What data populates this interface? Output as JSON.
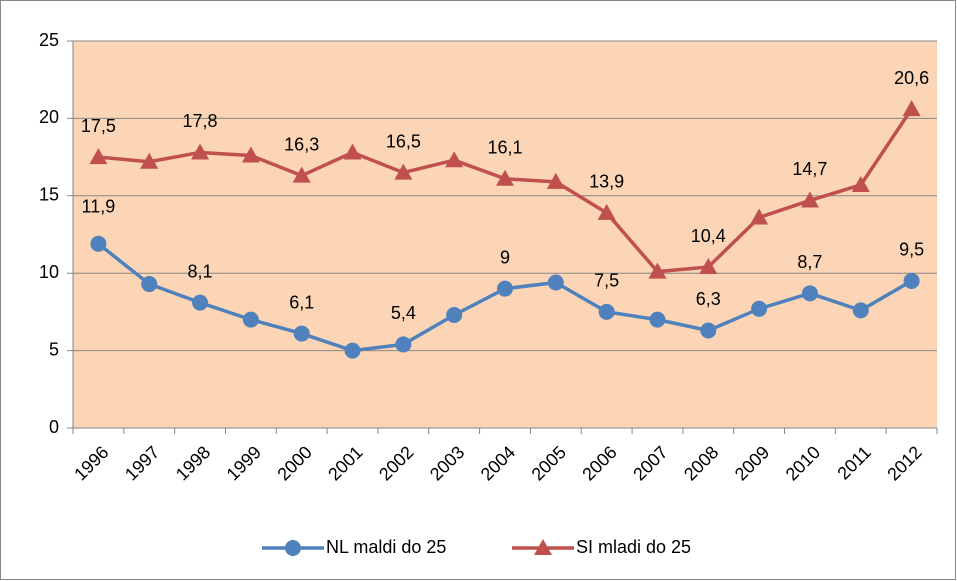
{
  "chart_data": {
    "type": "line",
    "categories": [
      "1996",
      "1997",
      "1998",
      "1999",
      "2000",
      "2001",
      "2002",
      "2003",
      "2004",
      "2005",
      "2006",
      "2007",
      "2008",
      "2009",
      "2010",
      "2011",
      "2012"
    ],
    "series": [
      {
        "name": "NL maldi do 25",
        "color": "#4f81bd",
        "marker": "circle",
        "values": [
          11.9,
          9.3,
          8.1,
          7.0,
          6.1,
          5.0,
          5.4,
          7.3,
          9,
          9.4,
          7.5,
          7.0,
          6.3,
          7.7,
          8.7,
          7.6,
          9.5
        ],
        "value_labels": [
          "11,9",
          null,
          "8,1",
          null,
          "6,1",
          null,
          "5,4",
          null,
          "9",
          null,
          "7,5",
          null,
          "6,3",
          null,
          "8,7",
          null,
          "9,5"
        ]
      },
      {
        "name": "SI mladi do 25",
        "color": "#c0504d",
        "marker": "triangle",
        "values": [
          17.5,
          17.2,
          17.8,
          17.6,
          16.3,
          17.8,
          16.5,
          17.3,
          16.1,
          15.9,
          13.9,
          10.1,
          10.4,
          13.6,
          14.7,
          15.7,
          20.6
        ],
        "value_labels": [
          "17,5",
          null,
          "17,8",
          null,
          "16,3",
          null,
          "16,5",
          null,
          "16,1",
          null,
          "13,9",
          null,
          "10,4",
          null,
          "14,7",
          null,
          "20,6"
        ]
      }
    ],
    "ylim": [
      0,
      25
    ],
    "yticks": [
      0,
      5,
      10,
      15,
      20,
      25
    ],
    "grid": true,
    "legend": "bottom"
  }
}
